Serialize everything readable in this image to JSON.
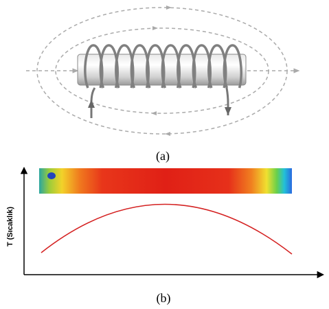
{
  "panels": [
    {
      "label": "(a)"
    },
    {
      "label": "(b)",
      "y_axis_label": "T (Sıcaklık)"
    }
  ]
}
